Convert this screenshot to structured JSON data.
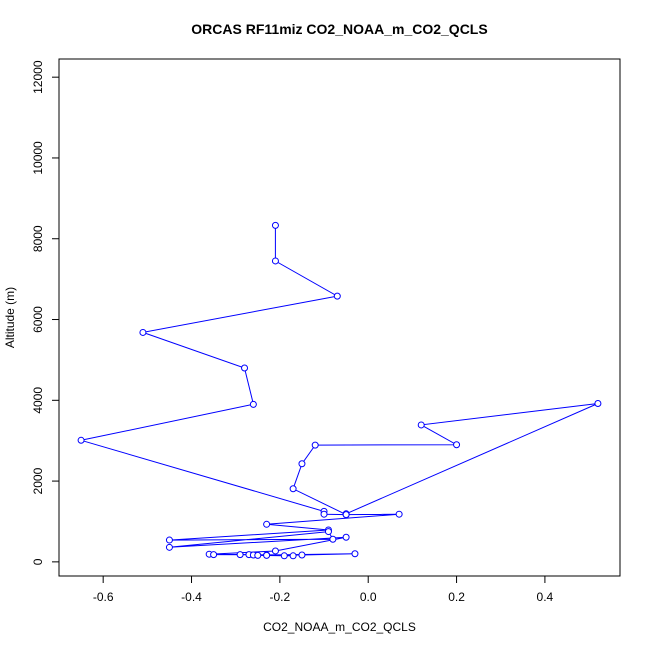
{
  "chart_data": {
    "type": "line",
    "title": "ORCAS RF11miz CO2_NOAA_m_CO2_QCLS",
    "xlabel": "CO2_NOAA_m_CO2_QCLS",
    "ylabel": "Altitude (m)",
    "xlim": [
      -0.7,
      0.57
    ],
    "ylim": [
      -350,
      12450
    ],
    "xticks": [
      -0.6,
      -0.4,
      -0.2,
      0.0,
      0.2,
      0.4
    ],
    "xtick_labels": [
      "-0.6",
      "-0.4",
      "-0.2",
      "0.0",
      "0.2",
      "0.4"
    ],
    "yticks": [
      0,
      2000,
      4000,
      6000,
      8000,
      10000,
      12000
    ],
    "ytick_labels": [
      "0",
      "2000",
      "4000",
      "6000",
      "8000",
      "10000",
      "12000"
    ],
    "grid": false,
    "series_color": "#0000ff",
    "x": [
      -0.21,
      -0.21,
      -0.07,
      -0.51,
      -0.28,
      -0.26,
      -0.65,
      -0.1,
      -0.1,
      -0.05,
      -0.17,
      -0.15,
      -0.12,
      0.2,
      0.12,
      0.52,
      -0.05,
      -0.05,
      0.07,
      -0.23,
      -0.09,
      -0.45,
      -0.08,
      -0.09,
      -0.45,
      -0.05,
      -0.21,
      -0.36,
      -0.27,
      -0.23,
      -0.03,
      -0.15,
      -0.35,
      -0.29,
      -0.26,
      -0.23,
      -0.17,
      -0.25,
      -0.19
    ],
    "y": [
      8330,
      7450,
      6580,
      5680,
      4800,
      3900,
      3010,
      1250,
      1180,
      1170,
      1810,
      2430,
      2890,
      2900,
      3390,
      3920,
      1190,
      1170,
      1180,
      930,
      790,
      540,
      560,
      750,
      360,
      610,
      270,
      190,
      180,
      170,
      200,
      170,
      180,
      180,
      170,
      160,
      150,
      160,
      150
    ]
  }
}
